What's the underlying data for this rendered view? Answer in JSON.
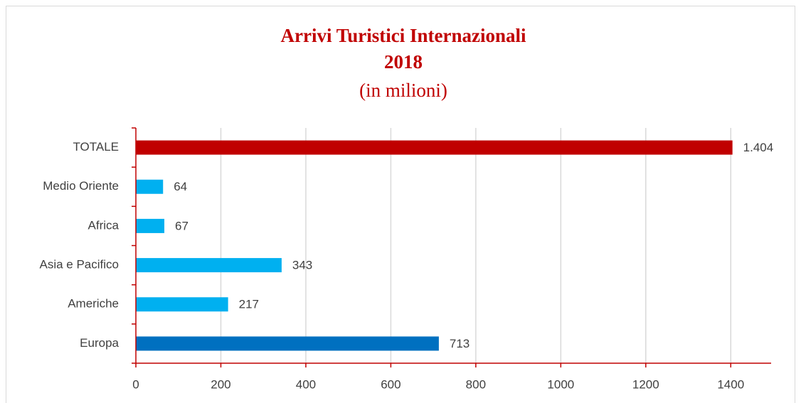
{
  "chart_data": {
    "type": "bar",
    "orientation": "horizontal",
    "title": [
      "Arrivi Turistici Internazionali",
      "2018"
    ],
    "subtitle": "(in milioni)",
    "categories": [
      "TOTALE",
      "Medio Oriente",
      "Africa",
      "Asia e Pacifico",
      "Americhe",
      "Europa"
    ],
    "values": [
      1404,
      64,
      67,
      343,
      217,
      713
    ],
    "value_labels": [
      "1.404",
      "64",
      "67",
      "343",
      "217",
      "713"
    ],
    "colors": [
      "#c00000",
      "#00b0f0",
      "#00b0f0",
      "#00b0f0",
      "#00b0f0",
      "#0070c0"
    ],
    "xlim": [
      0,
      1500
    ],
    "xticks": [
      0,
      200,
      400,
      600,
      800,
      1000,
      1200,
      1400
    ],
    "grid": true
  }
}
